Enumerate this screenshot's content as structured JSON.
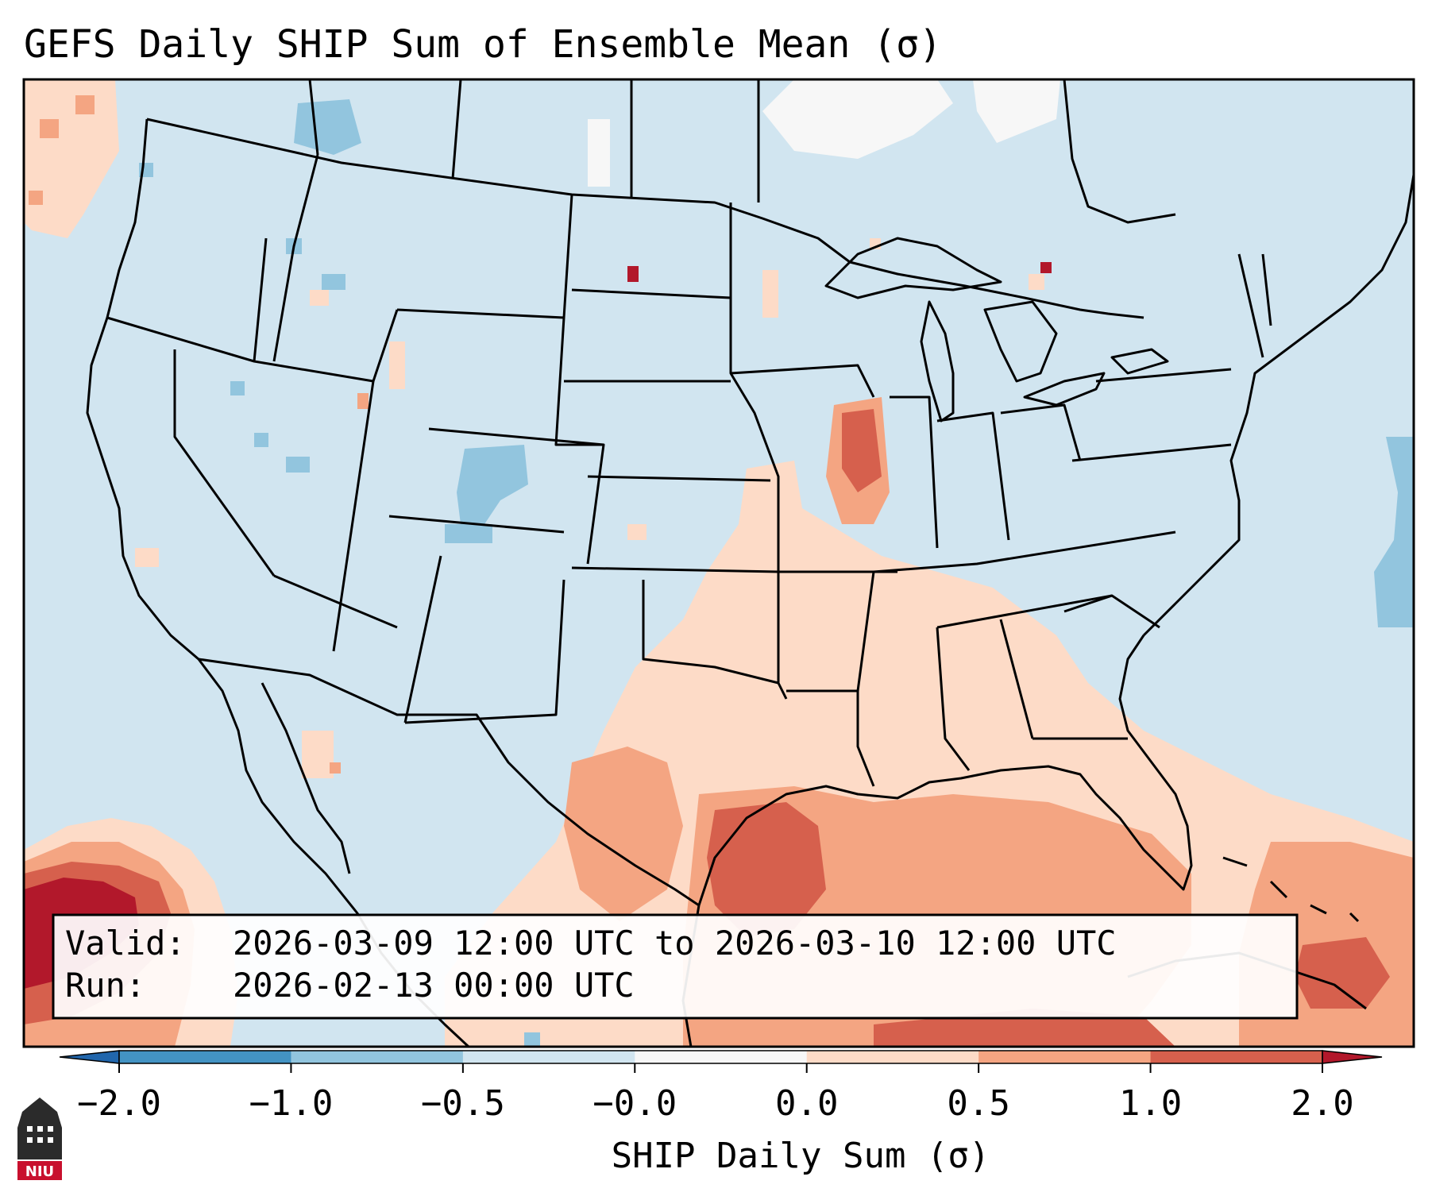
{
  "title": "GEFS Daily SHIP Sum of Ensemble Mean (σ)",
  "map": {
    "projection": "lambert-conformal",
    "region": "CONUS",
    "variable": "Significant Hail Parameter (SHIP) daily sum, standardized anomaly",
    "background_category": "-0.5 to -0.0",
    "features": [
      "coastlines",
      "country-borders",
      "state-borders"
    ]
  },
  "info_box": {
    "valid_label": "Valid:",
    "valid_value": "2026-03-09 12:00 UTC to 2026-03-10 12:00 UTC",
    "run_label": "Run:",
    "run_value": "2026-02-13 00:00 UTC"
  },
  "colorbar": {
    "label": "SHIP Daily Sum (σ)",
    "extend": "both",
    "ticks": [
      "−2.0",
      "−1.0",
      "−0.5",
      "−0.0",
      "0.0",
      "0.5",
      "1.0",
      "2.0"
    ],
    "bins": [
      {
        "range": "< -2.0",
        "color": "#2166ac"
      },
      {
        "range": "-2.0 to -1.0",
        "color": "#4393c3"
      },
      {
        "range": "-1.0 to -0.5",
        "color": "#92c5de"
      },
      {
        "range": "-0.5 to -0.0",
        "color": "#d1e5f0"
      },
      {
        "range": "-0.0 to 0.0",
        "color": "#f7f7f7"
      },
      {
        "range": "0.0 to 0.5",
        "color": "#fddbc7"
      },
      {
        "range": "0.5 to 1.0",
        "color": "#f4a582"
      },
      {
        "range": "1.0 to 2.0",
        "color": "#d6604d"
      },
      {
        "range": "> 2.0",
        "color": "#b2182b"
      }
    ]
  },
  "logo": {
    "text": "NIU"
  }
}
